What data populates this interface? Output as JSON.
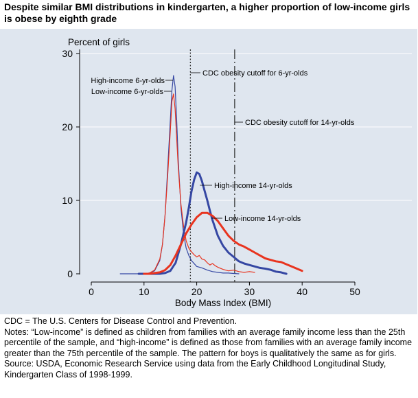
{
  "header": {
    "title": "Despite similar BMI distributions in kindergarten, a higher proportion of low-income girls is obese by eighth grade"
  },
  "colors": {
    "background": "#dfe6ef",
    "high_income": "#3547a3",
    "low_income": "#e8341f",
    "gridline": "#ffffff"
  },
  "chart_data": {
    "type": "line",
    "ylabel": "Percent of girls",
    "xlabel": "Body Mass Index (BMI)",
    "xlim": [
      0,
      50
    ],
    "ylim": [
      0,
      30
    ],
    "x_ticks": [
      0,
      10,
      20,
      30,
      40,
      50
    ],
    "y_ticks": [
      0,
      10,
      20,
      30
    ],
    "grid": true,
    "series": [
      {
        "name": "High-income 6-yr-olds",
        "color": "#3547a3",
        "width": "thin",
        "x": [
          5.5,
          8,
          10,
          11,
          12,
          13,
          13.5,
          14,
          14.5,
          15,
          15.3,
          15.6,
          15.9,
          16.2,
          16.5,
          17,
          17.5,
          18,
          18.5,
          19,
          20,
          21,
          22,
          23,
          24,
          25,
          26,
          27,
          28
        ],
        "y": [
          0,
          0,
          0,
          0.1,
          0.4,
          1.8,
          4,
          8,
          14.5,
          21,
          25,
          27,
          25.5,
          21,
          15.5,
          9,
          5.5,
          3.5,
          2.5,
          1.8,
          1,
          0.8,
          0.5,
          0.3,
          0.2,
          0.1,
          0.1,
          0.05,
          0
        ]
      },
      {
        "name": "Low-income 6-yr-olds",
        "color": "#e8341f",
        "width": "thin",
        "x": [
          9,
          10,
          11,
          12,
          13,
          13.5,
          14,
          14.5,
          15,
          15.3,
          15.6,
          15.9,
          16.2,
          16.5,
          17,
          17.5,
          18,
          18.5,
          19,
          19.5,
          20,
          20.5,
          21,
          21.5,
          22,
          22.5,
          23,
          23.5,
          24,
          25,
          26,
          27,
          28,
          29,
          30,
          31
        ],
        "y": [
          0,
          0,
          0.1,
          0.5,
          2,
          4,
          8,
          13.5,
          19.5,
          23.5,
          24.5,
          22.5,
          18.5,
          14.5,
          9.5,
          6.5,
          4.5,
          3.5,
          3,
          2.6,
          2.3,
          2.5,
          2,
          1.9,
          1.5,
          1.2,
          1.4,
          1.1,
          0.9,
          0.6,
          0.4,
          0.5,
          0.3,
          0.2,
          0.3,
          0.2
        ]
      },
      {
        "name": "High-income 14-yr-olds",
        "color": "#3547a3",
        "width": "thick",
        "x": [
          9,
          10,
          11,
          12,
          13,
          14,
          15,
          16,
          17,
          18,
          18.5,
          19,
          19.5,
          20,
          20.5,
          21,
          21.5,
          22,
          22.5,
          23,
          24,
          25,
          26,
          27,
          28,
          29,
          30,
          31,
          32,
          33,
          34,
          35,
          36,
          37
        ],
        "y": [
          0,
          0,
          0,
          0,
          0,
          0.1,
          0.4,
          1.5,
          4,
          7,
          9,
          11.2,
          12.8,
          13.8,
          13.6,
          12.6,
          11.3,
          10,
          8.6,
          7.3,
          5.2,
          3.8,
          2.9,
          2.3,
          1.7,
          1.4,
          1.2,
          1.0,
          0.8,
          0.7,
          0.55,
          0.3,
          0.2,
          0
        ]
      },
      {
        "name": "Low-income 14-yr-olds",
        "color": "#e8341f",
        "width": "thick",
        "x": [
          10,
          11,
          12,
          13,
          14,
          15,
          16,
          17,
          18,
          19,
          20,
          21,
          22,
          23,
          24,
          25,
          26,
          27,
          28,
          29,
          30,
          31,
          32,
          33,
          34,
          35,
          36,
          37,
          38,
          39,
          40
        ],
        "y": [
          0,
          0,
          0.1,
          0.2,
          0.5,
          1.2,
          2.5,
          4,
          5.5,
          6.7,
          7.7,
          8.3,
          8.3,
          7.9,
          7.2,
          6.2,
          5.2,
          4.5,
          4.0,
          3.7,
          3.3,
          2.9,
          2.5,
          2.1,
          1.9,
          1.7,
          1.6,
          1.3,
          1.0,
          0.7,
          0.4
        ]
      }
    ],
    "reference_lines": [
      {
        "x": 18.8,
        "label": "CDC obesity cutoff for 6-yr-olds",
        "style": "dotted"
      },
      {
        "x": 27.2,
        "label": "CDC obesity cutoff for 14-yr-olds",
        "style": "dashdot"
      }
    ],
    "annotations": {
      "high_income_6": "High-income 6-yr-olds",
      "low_income_6": "Low-income 6-yr-olds",
      "high_income_14": "High-income 14-yr-olds",
      "low_income_14": "Low-income 14-yr-olds"
    }
  },
  "notes": {
    "cdc": "CDC = The U.S. Centers for Disease Control and Prevention.",
    "definition": "Notes: “Low-income” is defined as children from families with an average family income less than the 25th percentile of the sample, and “high-income” is defined as those from families with an average family income greater than the 75th percentile of the sample. The pattern for boys is qualitatively the same as for girls.",
    "source": "Source: USDA, Economic Research Service using data from the Early Childhood Longitudinal Study, Kindergarten Class of 1998-1999."
  }
}
